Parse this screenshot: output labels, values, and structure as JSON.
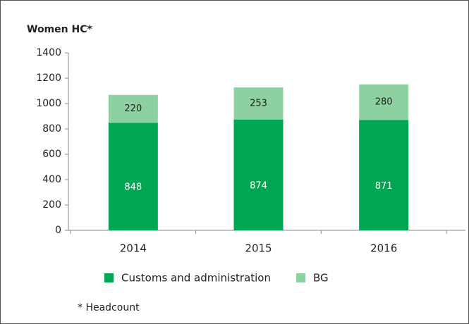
{
  "chart_data": {
    "type": "stacked_bar",
    "title": "Women HC*",
    "categories": [
      "2014",
      "2015",
      "2016"
    ],
    "series": [
      {
        "name": "Customs and administration",
        "color": "#00a651",
        "values": [
          848,
          874,
          871
        ]
      },
      {
        "name": "BG",
        "color": "#8dd1a3",
        "values": [
          220,
          253,
          280
        ]
      }
    ],
    "ylim": [
      0,
      1400
    ],
    "yticks": [
      0,
      200,
      400,
      600,
      800,
      1000,
      1200,
      1400
    ],
    "grid": false,
    "legend": "bottom",
    "footnote": "* Headcount"
  }
}
